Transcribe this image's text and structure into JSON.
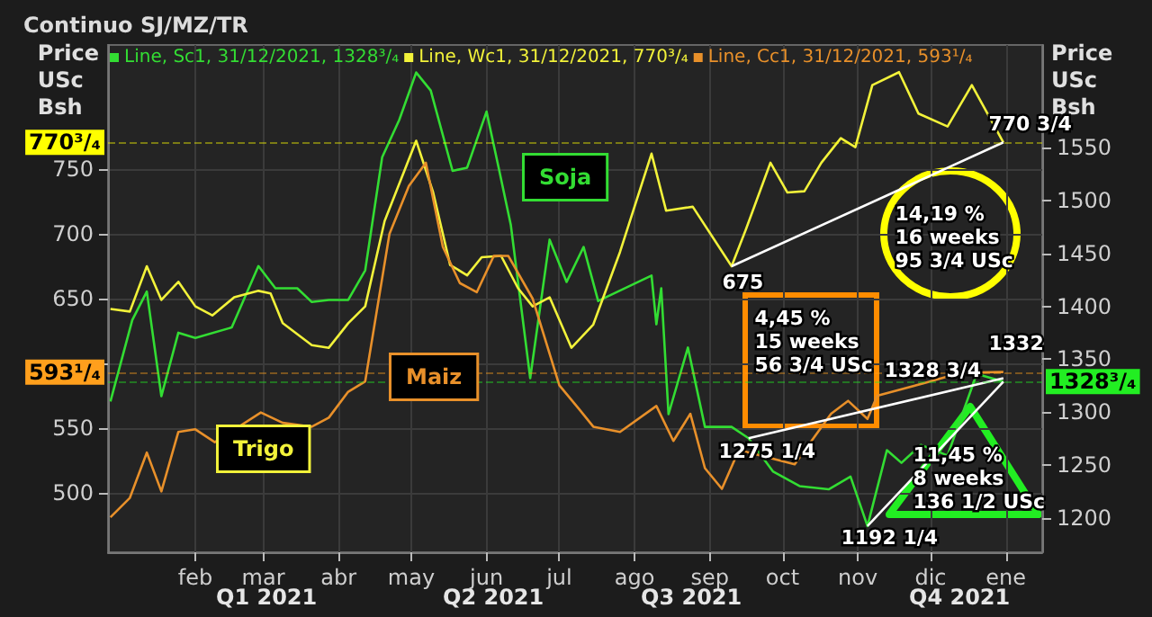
{
  "chart_data": {
    "type": "line",
    "title": "Continuo SJ/MZ/TR",
    "ylabel": "Price USc Bsh",
    "y2label": "Price USc Bsh",
    "xlim": [
      "2020-12-27",
      "2022-01-16"
    ],
    "xticks": [
      {
        "value": "2021-02-01",
        "label": "feb"
      },
      {
        "value": "2021-03-01",
        "label": "mar"
      },
      {
        "value": "2021-04-01",
        "label": "abr"
      },
      {
        "value": "2021-05-01",
        "label": "may"
      },
      {
        "value": "2021-06-01",
        "label": "jun"
      },
      {
        "value": "2021-07-01",
        "label": "jul"
      },
      {
        "value": "2021-08-01",
        "label": "ago"
      },
      {
        "value": "2021-09-01",
        "label": "sep"
      },
      {
        "value": "2021-10-01",
        "label": "oct"
      },
      {
        "value": "2021-11-01",
        "label": "nov"
      },
      {
        "value": "2021-12-01",
        "label": "dic"
      },
      {
        "value": "2022-01-01",
        "label": "ene"
      }
    ],
    "ylim": [
      454,
      846
    ],
    "yticks": [
      500,
      550,
      {
        "value": 600,
        "label": null
      },
      650,
      700,
      750
    ],
    "y2lim": [
      1167.5,
      1647
    ],
    "y2ticks": [
      1200,
      1250,
      1300,
      1350,
      1400,
      1450,
      1500,
      1550
    ],
    "grid": true,
    "legend": "top",
    "marker": "none",
    "line_style": "solid",
    "series": [
      {
        "name": "Line, Sc1, 31/12/2021, 1328³/₄",
        "color": "#33dd33",
        "axis": "y2",
        "x": [
          "2020-12-28",
          "2021-01-06",
          "2021-01-12",
          "2021-01-18",
          "2021-01-25",
          "2021-02-01",
          "2021-02-16",
          "2021-02-27",
          "2021-03-06",
          "2021-03-15",
          "2021-03-21",
          "2021-03-28",
          "2021-04-05",
          "2021-04-12",
          "2021-04-19",
          "2021-04-26",
          "2021-05-03",
          "2021-05-09",
          "2021-05-18",
          "2021-05-24",
          "2021-06-01",
          "2021-06-06",
          "2021-06-11",
          "2021-06-19",
          "2021-06-27",
          "2021-07-04",
          "2021-07-11",
          "2021-07-17",
          "2021-08-08",
          "2021-08-10",
          "2021-08-12",
          "2021-08-15",
          "2021-08-23",
          "2021-08-30",
          "2021-09-10",
          "2021-09-17",
          "2021-09-27",
          "2021-10-08",
          "2021-10-20",
          "2021-10-29",
          "2021-11-05",
          "2021-11-13",
          "2021-11-19",
          "2021-11-27",
          "2021-12-08",
          "2021-12-20",
          "2021-12-31"
        ],
        "values": [
          1310,
          1387,
          1414,
          1315,
          1375,
          1370,
          1380,
          1438,
          1417,
          1417,
          1404,
          1406,
          1406,
          1434,
          1541,
          1576,
          1621,
          1604,
          1528,
          1531,
          1584,
          1531,
          1477,
          1332,
          1463,
          1423,
          1456,
          1405,
          1429,
          1383,
          1417,
          1298,
          1361,
          1286,
          1286,
          1275.25,
          1244,
          1230,
          1227,
          1239,
          1192.25,
          1264,
          1252,
          1269,
          1259,
          1336,
          1328.75
        ]
      },
      {
        "name": "Line, Wc1, 31/12/2021, 770³/₄",
        "color": "#f2f23a",
        "x": [
          "2020-12-28",
          "2021-01-05",
          "2021-01-12",
          "2021-01-18",
          "2021-01-25",
          "2021-02-01",
          "2021-02-08",
          "2021-02-17",
          "2021-02-27",
          "2021-03-04",
          "2021-03-09",
          "2021-03-21",
          "2021-03-28",
          "2021-04-05",
          "2021-04-12",
          "2021-04-20",
          "2021-05-03",
          "2021-05-10",
          "2021-05-17",
          "2021-05-24",
          "2021-05-30",
          "2021-06-07",
          "2021-06-14",
          "2021-06-20",
          "2021-06-27",
          "2021-07-06",
          "2021-07-15",
          "2021-07-26",
          "2021-08-08",
          "2021-08-14",
          "2021-08-25",
          "2021-09-10",
          "2021-09-16",
          "2021-09-26",
          "2021-10-03",
          "2021-10-10",
          "2021-10-17",
          "2021-10-25",
          "2021-10-31",
          "2021-11-07",
          "2021-11-18",
          "2021-11-26",
          "2021-12-08",
          "2021-12-18",
          "2021-12-31"
        ],
        "values": [
          642,
          640,
          675,
          649,
          663,
          644,
          637,
          651,
          656,
          654,
          631,
          614,
          612,
          631,
          644,
          710,
          772,
          732,
          676,
          668,
          682,
          683,
          658,
          644,
          651,
          612,
          630,
          686,
          762,
          718,
          721,
          675,
          704,
          755,
          732,
          733,
          755,
          774,
          767,
          815,
          825,
          793,
          783,
          815,
          770.75
        ]
      },
      {
        "name": "Line, Cc1, 31/12/2021, 593¹/₄",
        "color": "#e8902a",
        "x": [
          "2020-12-28",
          "2021-01-05",
          "2021-01-12",
          "2021-01-18",
          "2021-01-25",
          "2021-02-01",
          "2021-02-09",
          "2021-02-28",
          "2021-03-09",
          "2021-03-21",
          "2021-03-28",
          "2021-04-05",
          "2021-04-12",
          "2021-04-22",
          "2021-04-30",
          "2021-05-07",
          "2021-05-14",
          "2021-05-21",
          "2021-05-28",
          "2021-06-04",
          "2021-06-10",
          "2021-06-20",
          "2021-07-01",
          "2021-07-09",
          "2021-07-15",
          "2021-07-26",
          "2021-08-10",
          "2021-08-17",
          "2021-08-24",
          "2021-08-30",
          "2021-09-06",
          "2021-09-13",
          "2021-10-06",
          "2021-10-21",
          "2021-10-28",
          "2021-11-05",
          "2021-11-09",
          "2021-11-29",
          "2021-12-14",
          "2021-12-21",
          "2021-12-31"
        ],
        "values": [
          481,
          496,
          531,
          501,
          547,
          549,
          539,
          562,
          554,
          551,
          558,
          578,
          586,
          700,
          737,
          755,
          690,
          662,
          655,
          683,
          683,
          650,
          583,
          565,
          551,
          547,
          567,
          540,
          561,
          519,
          503,
          533,
          522,
          561,
          571,
          557,
          575,
          585,
          593,
          593,
          593.25
        ]
      },
      {
        "color": "#ffffff",
        "x": [
          "2021-09-10",
          "2021-12-31"
        ],
        "values": [
          675,
          770.75
        ]
      },
      {
        "color": "#ffffff",
        "axis": "y2",
        "x": [
          "2021-09-17",
          "2021-12-31"
        ],
        "values": [
          1275.25,
          1332
        ]
      },
      {
        "color": "#ffffff",
        "axis": "y2",
        "x": [
          "2021-11-05",
          "2021-12-31"
        ],
        "values": [
          1192.25,
          1328.75
        ]
      }
    ],
    "ref_lines": [
      {
        "axis": "y",
        "value": 770.75,
        "label": "770³/₄",
        "color": "#ffff00"
      },
      {
        "axis": "y",
        "value": 593.25,
        "label": "593¹/₄",
        "color": "#ff9f1c"
      },
      {
        "axis": "y2",
        "value": 1328.75,
        "label": "1328³/₄",
        "color": "#22ee22"
      }
    ],
    "annotations": [
      "Soja",
      "Maiz",
      "Trigo",
      "770 3/4",
      "675",
      "14,19 %\n16 weeks\n95 3/4 USc",
      "4,45 %\n15 weeks\n56 3/4 USc",
      "1275 1/4",
      "1332",
      "1328 3/4",
      "1192 1/4",
      "11,45 %\n8 weeks\n136 1/2 USc",
      "Q1 2021",
      "Q2 2021",
      "Q3 2021",
      "Q4 2021"
    ]
  }
}
